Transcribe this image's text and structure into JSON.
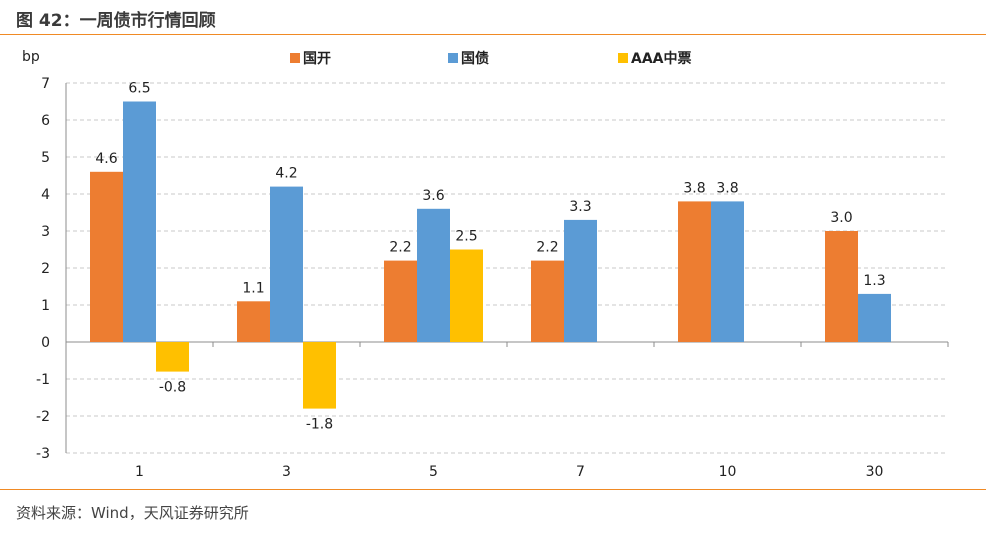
{
  "header": {
    "title": "图 42：一周债市行情回顾"
  },
  "footer": {
    "source": "资料来源：Wind，天风证券研究所"
  },
  "colors": {
    "guokai": "#ED7D31",
    "guozhai": "#5B9BD5",
    "aaa": "#FFC000",
    "rule": "#F08A24"
  },
  "chart_data": {
    "type": "bar",
    "title": "",
    "ylabel": "bp",
    "xlabel": "",
    "categories": [
      "1",
      "3",
      "5",
      "7",
      "10",
      "30"
    ],
    "ylim": [
      -3,
      7
    ],
    "yticks": [
      7,
      6,
      5,
      4,
      3,
      2,
      1,
      0,
      -1,
      -2,
      -3
    ],
    "grid": true,
    "legend_position": "top",
    "series": [
      {
        "name": "国开",
        "color": "#ED7D31",
        "values": [
          4.6,
          1.1,
          2.2,
          2.2,
          3.8,
          3.0
        ],
        "labels": [
          "4.6",
          "1.1",
          "2.2",
          "2.2",
          "3.8",
          "3.0"
        ]
      },
      {
        "name": "国债",
        "color": "#5B9BD5",
        "values": [
          6.5,
          4.2,
          3.6,
          3.3,
          3.8,
          1.3
        ],
        "labels": [
          "6.5",
          "4.2",
          "3.6",
          "3.3",
          "3.8",
          "1.3"
        ]
      },
      {
        "name": "AAA中票",
        "color": "#FFC000",
        "values": [
          -0.8,
          -1.8,
          2.5,
          null,
          null,
          null
        ],
        "labels": [
          "-0.8",
          "-1.8",
          "2.5",
          null,
          null,
          null
        ]
      }
    ]
  }
}
